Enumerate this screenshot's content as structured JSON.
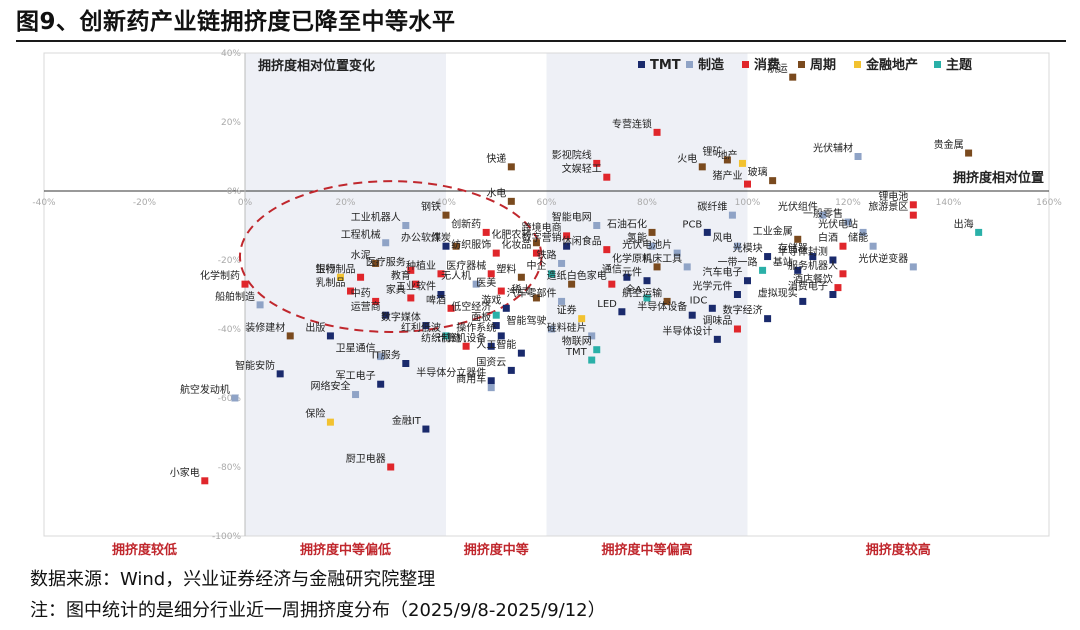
{
  "figure_title": "图9、创新药产业链拥挤度已降至中等水平",
  "source": "数据来源：Wind，兴业证券经济与金融研究院整理",
  "note": "注：图中统计的是细分行业近一周拥挤度分布（2025/9/8-2025/9/12）",
  "chart_data": {
    "type": "scatter",
    "x_axis_title": "拥挤度相对位置",
    "y_axis_title": "拥挤度相对位置变化",
    "xlim": [
      -40,
      160
    ],
    "ylim": [
      -100,
      40
    ],
    "x_ticks": [
      "-40%",
      "-20%",
      "0%",
      "20%",
      "40%",
      "60%",
      "80%",
      "100%",
      "120%",
      "140%",
      "160%"
    ],
    "y_ticks": [
      "40%",
      "20%",
      "0%",
      "-20%",
      "-40%",
      "-60%",
      "-80%",
      "-100%"
    ],
    "zones": [
      {
        "label": "拥挤度较低",
        "from": -40,
        "to": 0,
        "fill": "#ffffff"
      },
      {
        "label": "拥挤度中等偏低",
        "from": 0,
        "to": 40,
        "fill": "#eef0f6"
      },
      {
        "label": "拥挤度中等",
        "from": 40,
        "to": 60,
        "fill": "#ffffff"
      },
      {
        "label": "拥挤度中等偏高",
        "from": 60,
        "to": 100,
        "fill": "#eef0f6"
      },
      {
        "label": "拥挤度较高",
        "from": 100,
        "to": 160,
        "fill": "#ffffff"
      }
    ],
    "legend": [
      {
        "name": "TMT",
        "color": "#1a2a6c"
      },
      {
        "name": "制造",
        "color": "#8fa3c6"
      },
      {
        "name": "消费",
        "color": "#e0262b"
      },
      {
        "name": "周期",
        "color": "#7a4a1e"
      },
      {
        "name": "金融地产",
        "color": "#f2c230"
      },
      {
        "name": "主题",
        "color": "#2ab0a8"
      }
    ],
    "legend_position": "top-right",
    "grid": false,
    "annotation": "dashed red ellipse around 创新药 cluster",
    "points": [
      {
        "label": "航运",
        "x": 109,
        "y": 33,
        "group": "周期"
      },
      {
        "label": "专营连锁",
        "x": 82,
        "y": 17,
        "group": "消费"
      },
      {
        "label": "贵金属",
        "x": 144,
        "y": 11,
        "group": "周期"
      },
      {
        "label": "光伏辅材",
        "x": 122,
        "y": 10,
        "group": "制造"
      },
      {
        "label": "地产",
        "x": 99,
        "y": 8,
        "group": "金融地产"
      },
      {
        "label": "锂矿",
        "x": 96,
        "y": 9,
        "group": "周期"
      },
      {
        "label": "影视院线",
        "x": 70,
        "y": 8,
        "group": "消费"
      },
      {
        "label": "快递",
        "x": 53,
        "y": 7,
        "group": "周期"
      },
      {
        "label": "火电",
        "x": 91,
        "y": 7,
        "group": "周期"
      },
      {
        "label": "文娱轻工",
        "x": 72,
        "y": 4,
        "group": "消费"
      },
      {
        "label": "猪产业",
        "x": 100,
        "y": 2,
        "group": "消费"
      },
      {
        "label": "玻璃",
        "x": 105,
        "y": 3,
        "group": "周期"
      },
      {
        "label": "锂电池",
        "x": 133,
        "y": -4,
        "group": "消费"
      },
      {
        "label": "水电",
        "x": 53,
        "y": -3,
        "group": "周期"
      },
      {
        "label": "碳纤维",
        "x": 97,
        "y": -7,
        "group": "制造"
      },
      {
        "label": "光伏组件",
        "x": 115,
        "y": -7,
        "group": "制造"
      },
      {
        "label": "旅游景区",
        "x": 133,
        "y": -7,
        "group": "消费"
      },
      {
        "label": "钢铁",
        "x": 40,
        "y": -7,
        "group": "周期"
      },
      {
        "label": "一般零售",
        "x": 120,
        "y": -9,
        "group": "制造"
      },
      {
        "label": "智能电网",
        "x": 70,
        "y": -10,
        "group": "制造"
      },
      {
        "label": "工业机器人",
        "x": 32,
        "y": -10,
        "group": "制造"
      },
      {
        "label": "出海",
        "x": 146,
        "y": -12,
        "group": "主题"
      },
      {
        "label": "创新药",
        "x": 48,
        "y": -12,
        "group": "消费"
      },
      {
        "label": "石油石化",
        "x": 81,
        "y": -12,
        "group": "周期"
      },
      {
        "label": "光伏电站",
        "x": 123,
        "y": -12,
        "group": "制造"
      },
      {
        "label": "跨境电商",
        "x": 64,
        "y": -13,
        "group": "消费"
      },
      {
        "label": "PCB",
        "x": 92,
        "y": -12,
        "group": "TMT"
      },
      {
        "label": "工业金属",
        "x": 110,
        "y": -14,
        "group": "周期"
      },
      {
        "label": "化肥农药",
        "x": 58,
        "y": -15,
        "group": "周期"
      },
      {
        "label": "工程机械",
        "x": 28,
        "y": -15,
        "group": "制造"
      },
      {
        "label": "办公软件",
        "x": 40,
        "y": -16,
        "group": "TMT"
      },
      {
        "label": "煤炭",
        "x": 42,
        "y": -16,
        "group": "周期"
      },
      {
        "label": "数字营销",
        "x": 64,
        "y": -16,
        "group": "TMT"
      },
      {
        "label": "氢能",
        "x": 81,
        "y": -16,
        "group": "制造"
      },
      {
        "label": "风电",
        "x": 98,
        "y": -16,
        "group": "制造"
      },
      {
        "label": "白酒",
        "x": 119,
        "y": -16,
        "group": "消费"
      },
      {
        "label": "储能",
        "x": 125,
        "y": -16,
        "group": "制造"
      },
      {
        "label": "纺织服饰",
        "x": 50,
        "y": -18,
        "group": "消费"
      },
      {
        "label": "休闲食品",
        "x": 72,
        "y": -17,
        "group": "消费"
      },
      {
        "label": "光伏电池片",
        "x": 86,
        "y": -18,
        "group": "制造"
      },
      {
        "label": "化妆品",
        "x": 58,
        "y": -18,
        "group": "消费"
      },
      {
        "label": "光模块",
        "x": 104,
        "y": -19,
        "group": "TMT"
      },
      {
        "label": "存储器",
        "x": 113,
        "y": -19,
        "group": "TMT"
      },
      {
        "label": "半导体封测",
        "x": 117,
        "y": -20,
        "group": "TMT"
      },
      {
        "label": "水泥",
        "x": 26,
        "y": -21,
        "group": "周期"
      },
      {
        "label": "铁路",
        "x": 63,
        "y": -21,
        "group": "制造"
      },
      {
        "label": "化学原料",
        "x": 82,
        "y": -22,
        "group": "周期"
      },
      {
        "label": "机床工具",
        "x": 88,
        "y": -22,
        "group": "制造"
      },
      {
        "label": "一带一路",
        "x": 103,
        "y": -23,
        "group": "主题"
      },
      {
        "label": "基站",
        "x": 110,
        "y": -23,
        "group": "TMT"
      },
      {
        "label": "光伏逆变器",
        "x": 133,
        "y": -22,
        "group": "制造"
      },
      {
        "label": "医疗服务",
        "x": 33,
        "y": -23,
        "group": "消费"
      },
      {
        "label": "种植业",
        "x": 39,
        "y": -24,
        "group": "消费"
      },
      {
        "label": "医疗器械",
        "x": 49,
        "y": -24,
        "group": "消费"
      },
      {
        "label": "中企",
        "x": 61,
        "y": -24,
        "group": "主题"
      },
      {
        "label": "服务机器人",
        "x": 119,
        "y": -24,
        "group": "消费"
      },
      {
        "label": "银行",
        "x": 19,
        "y": -25,
        "group": "金融地产"
      },
      {
        "label": "生物制品",
        "x": 23,
        "y": -25,
        "group": "消费"
      },
      {
        "label": "塑料",
        "x": 55,
        "y": -25,
        "group": "周期"
      },
      {
        "label": "通信",
        "x": 76,
        "y": -25,
        "group": "TMT"
      },
      {
        "label": "元件",
        "x": 80,
        "y": -26,
        "group": "TMT"
      },
      {
        "label": "汽车电子",
        "x": 100,
        "y": -26,
        "group": "TMT"
      },
      {
        "label": "化学制药",
        "x": 0,
        "y": -27,
        "group": "消费"
      },
      {
        "label": "教育",
        "x": 34,
        "y": -27,
        "group": "消费"
      },
      {
        "label": "无人机",
        "x": 46,
        "y": -27,
        "group": "制造"
      },
      {
        "label": "造纸",
        "x": 65,
        "y": -27,
        "group": "周期"
      },
      {
        "label": "白色家电",
        "x": 73,
        "y": -27,
        "group": "消费"
      },
      {
        "label": "酒店餐饮",
        "x": 118,
        "y": -28,
        "group": "消费"
      },
      {
        "label": "乳制品",
        "x": 21,
        "y": -29,
        "group": "消费"
      },
      {
        "label": "工业软件",
        "x": 39,
        "y": -30,
        "group": "TMT"
      },
      {
        "label": "医美",
        "x": 51,
        "y": -29,
        "group": "消费"
      },
      {
        "label": "光学元件",
        "x": 98,
        "y": -30,
        "group": "TMT"
      },
      {
        "label": "消费电子",
        "x": 117,
        "y": -30,
        "group": "TMT"
      },
      {
        "label": "家具",
        "x": 33,
        "y": -31,
        "group": "消费"
      },
      {
        "label": "稀土",
        "x": 58,
        "y": -31,
        "group": "周期"
      },
      {
        "label": "全A",
        "x": 80,
        "y": -31,
        "group": "主题"
      },
      {
        "label": "中药",
        "x": 26,
        "y": -32,
        "group": "消费"
      },
      {
        "label": "汽车零部件",
        "x": 63,
        "y": -32,
        "group": "制造"
      },
      {
        "label": "航空运输",
        "x": 84,
        "y": -32,
        "group": "周期"
      },
      {
        "label": "虚拟现实",
        "x": 111,
        "y": -32,
        "group": "TMT"
      },
      {
        "label": "船舶制造",
        "x": 3,
        "y": -33,
        "group": "制造"
      },
      {
        "label": "啤酒",
        "x": 41,
        "y": -34,
        "group": "消费"
      },
      {
        "label": "IDC",
        "x": 93,
        "y": -34,
        "group": "TMT"
      },
      {
        "label": "运营商",
        "x": 28,
        "y": -36,
        "group": "TMT"
      },
      {
        "label": "低空经济",
        "x": 50,
        "y": -36,
        "group": "主题"
      },
      {
        "label": "游戏",
        "x": 52,
        "y": -34,
        "group": "TMT"
      },
      {
        "label": "证券",
        "x": 67,
        "y": -37,
        "group": "金融地产"
      },
      {
        "label": "半导体设备",
        "x": 89,
        "y": -36,
        "group": "TMT"
      },
      {
        "label": "LED",
        "x": 75,
        "y": -35,
        "group": "TMT"
      },
      {
        "label": "数字经济",
        "x": 104,
        "y": -37,
        "group": "TMT"
      },
      {
        "label": "数字媒体",
        "x": 36,
        "y": -39,
        "group": "TMT"
      },
      {
        "label": "面板",
        "x": 50,
        "y": -39,
        "group": "TMT"
      },
      {
        "label": "智能驾驶",
        "x": 61,
        "y": -40,
        "group": "制造"
      },
      {
        "label": "调味品",
        "x": 98,
        "y": -40,
        "group": "消费"
      },
      {
        "label": "装修建材",
        "x": 9,
        "y": -42,
        "group": "周期"
      },
      {
        "label": "出版",
        "x": 17,
        "y": -42,
        "group": "TMT"
      },
      {
        "label": "红利低波",
        "x": 40,
        "y": -42,
        "group": "主题"
      },
      {
        "label": "操作系统",
        "x": 51,
        "y": -42,
        "group": "TMT"
      },
      {
        "label": "硅料硅片",
        "x": 69,
        "y": -42,
        "group": "制造"
      },
      {
        "label": "半导体设计",
        "x": 94,
        "y": -43,
        "group": "TMT"
      },
      {
        "label": "纺织制造",
        "x": 44,
        "y": -45,
        "group": "消费"
      },
      {
        "label": "计算机设备",
        "x": 49,
        "y": -45,
        "group": "TMT"
      },
      {
        "label": "物联网",
        "x": 70,
        "y": -46,
        "group": "主题"
      },
      {
        "label": "人工智能",
        "x": 55,
        "y": -47,
        "group": "TMT"
      },
      {
        "label": "卫星通信",
        "x": 27,
        "y": -48,
        "group": "制造"
      },
      {
        "label": "IT服务",
        "x": 32,
        "y": -50,
        "group": "TMT"
      },
      {
        "label": "TMT",
        "x": 69,
        "y": -49,
        "group": "主题"
      },
      {
        "label": "国资云",
        "x": 53,
        "y": -52,
        "group": "TMT"
      },
      {
        "label": "智能安防",
        "x": 7,
        "y": -53,
        "group": "TMT"
      },
      {
        "label": "军工电子",
        "x": 27,
        "y": -56,
        "group": "TMT"
      },
      {
        "label": "半导体分立器件",
        "x": 49,
        "y": -55,
        "group": "TMT"
      },
      {
        "label": "航空发动机",
        "x": -2,
        "y": -60,
        "group": "制造"
      },
      {
        "label": "网络安全",
        "x": 22,
        "y": -59,
        "group": "制造"
      },
      {
        "label": "商用车",
        "x": 49,
        "y": -57,
        "group": "制造"
      },
      {
        "label": "保险",
        "x": 17,
        "y": -67,
        "group": "金融地产"
      },
      {
        "label": "金融IT",
        "x": 36,
        "y": -69,
        "group": "TMT"
      },
      {
        "label": "厨卫电器",
        "x": 29,
        "y": -80,
        "group": "消费"
      },
      {
        "label": "小家电",
        "x": -8,
        "y": -84,
        "group": "消费"
      }
    ]
  }
}
